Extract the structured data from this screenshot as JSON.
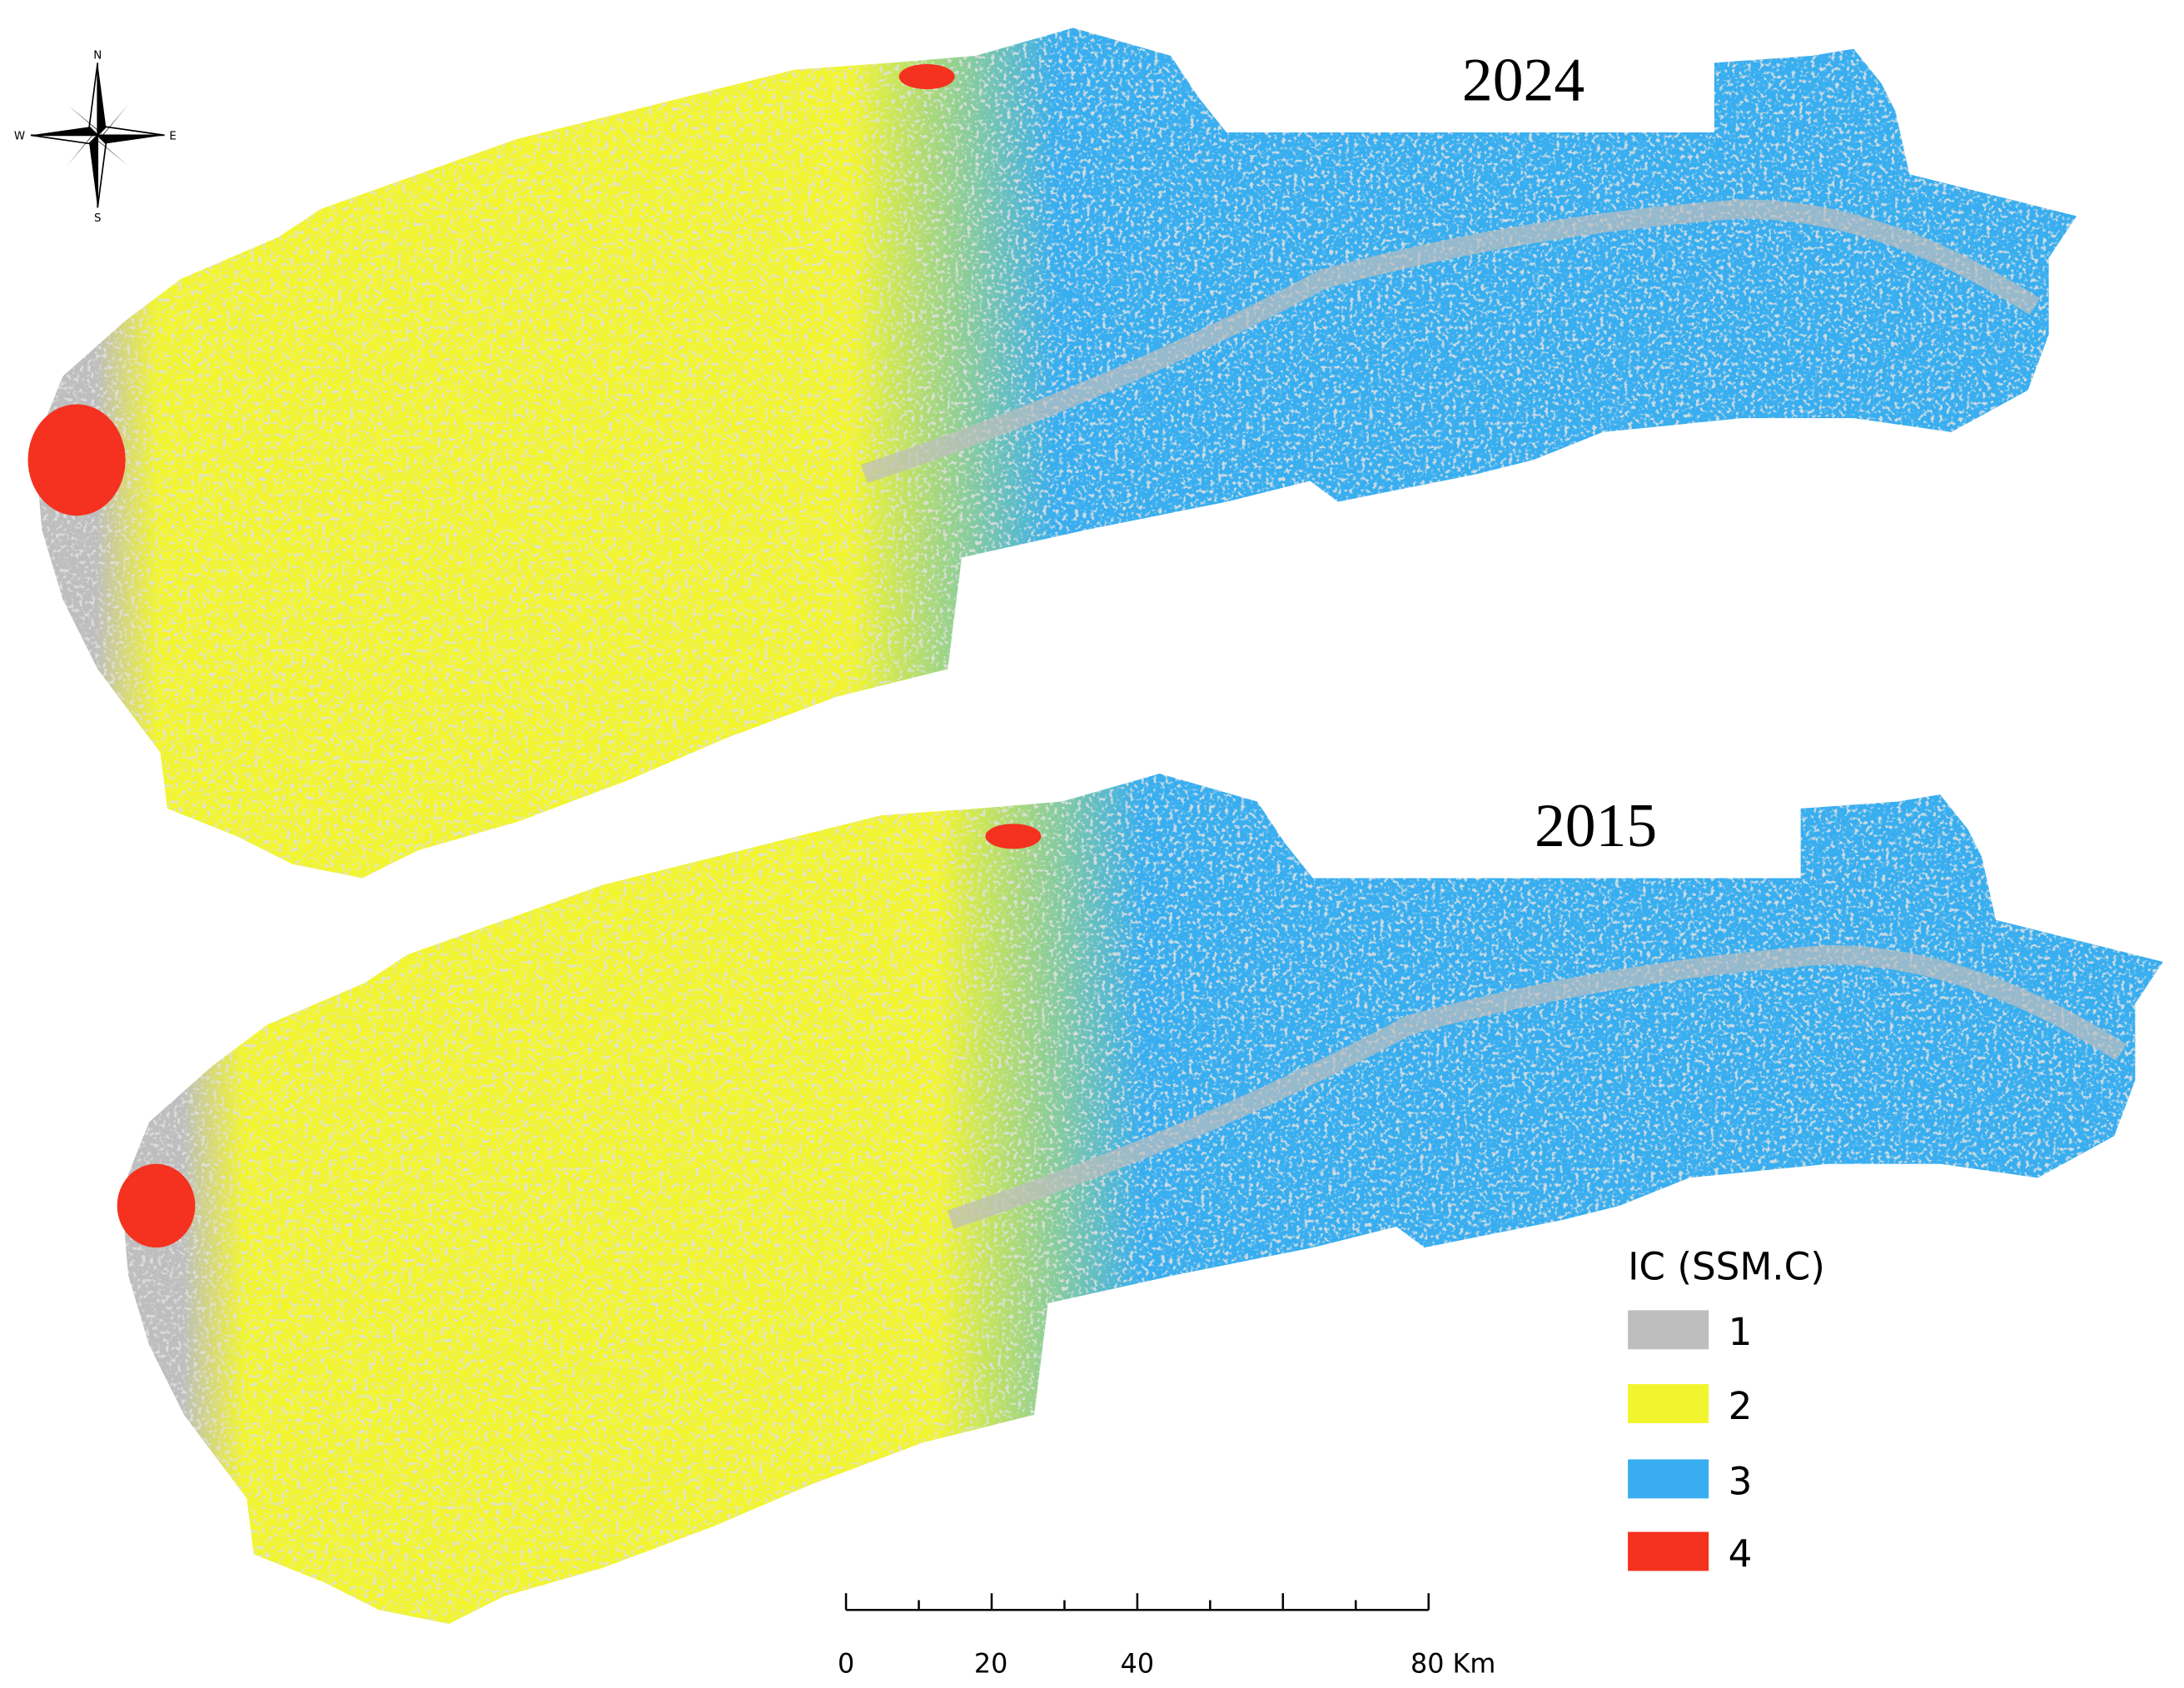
{
  "compass": {
    "north": "N",
    "east": "E",
    "south": "S",
    "west": "W"
  },
  "maps": [
    {
      "year": "2024"
    },
    {
      "year": "2015"
    }
  ],
  "legend": {
    "title": "IC (SSM.C)",
    "items": [
      {
        "label": "1",
        "color": "#bebebe"
      },
      {
        "label": "2",
        "color": "#f2f52e"
      },
      {
        "label": "3",
        "color": "#38aef0"
      },
      {
        "label": "4",
        "color": "#f5321f"
      }
    ]
  },
  "scale_bar": {
    "labels": [
      "0",
      "20",
      "40",
      "80 Km"
    ]
  }
}
